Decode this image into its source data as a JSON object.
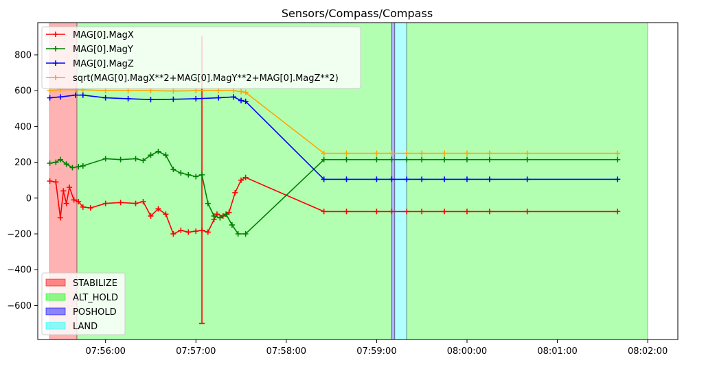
{
  "chart_data": {
    "type": "line",
    "title": "Sensors/Compass/Compass",
    "xlabel": "",
    "ylabel": "",
    "xlim": [
      "07:55:15",
      "08:02:20"
    ],
    "ylim": [
      -790,
      980
    ],
    "x_ticks": [
      "07:56:00",
      "07:57:00",
      "07:58:00",
      "07:59:00",
      "08:00:00",
      "08:01:00",
      "08:02:00"
    ],
    "y_ticks": [
      800,
      600,
      400,
      200,
      0,
      -200,
      -400,
      -600
    ],
    "y_tick_labels": [
      "800",
      "600",
      "400",
      "200",
      "0",
      "−200",
      "−400",
      "−600"
    ],
    "grid": false,
    "series_legend_position": "upper-left",
    "mode_legend_position": "lower-left",
    "series": [
      {
        "name": "MAG[0].MagX",
        "color": "#ff0000",
        "x": [
          "07:55:23",
          "07:55:27",
          "07:55:30",
          "07:55:32",
          "07:55:34",
          "07:55:36",
          "07:55:39",
          "07:55:42",
          "07:55:45",
          "07:55:50",
          "07:56:00",
          "07:56:10",
          "07:56:20",
          "07:56:25",
          "07:56:30",
          "07:56:35",
          "07:56:40",
          "07:56:45",
          "07:56:50",
          "07:56:55",
          "07:57:00",
          "07:57:04",
          "07:57:08",
          "07:57:12",
          "07:57:14",
          "07:57:18",
          "07:57:22",
          "07:57:26",
          "07:57:30",
          "07:57:33",
          "07:58:25",
          "07:58:40",
          "07:59:00",
          "07:59:10",
          "07:59:20",
          "07:59:30",
          "07:59:45",
          "08:00:00",
          "08:00:15",
          "08:00:40",
          "08:01:40"
        ],
        "y": [
          95,
          90,
          -110,
          40,
          -30,
          60,
          -10,
          -20,
          -50,
          -55,
          -30,
          -25,
          -30,
          -20,
          -100,
          -60,
          -90,
          -200,
          -180,
          -190,
          -185,
          -180,
          -190,
          -120,
          -90,
          -100,
          -80,
          30,
          100,
          115,
          -75,
          -75,
          -75,
          -75,
          -75,
          -75,
          -75,
          -75,
          -75,
          -75,
          -75
        ]
      },
      {
        "name": "MAG[0].MagY",
        "color": "#008000",
        "x": [
          "07:55:23",
          "07:55:27",
          "07:55:30",
          "07:55:34",
          "07:55:38",
          "07:55:42",
          "07:55:45",
          "07:56:00",
          "07:56:10",
          "07:56:20",
          "07:56:25",
          "07:56:30",
          "07:56:35",
          "07:56:40",
          "07:56:45",
          "07:56:50",
          "07:56:55",
          "07:57:00",
          "07:57:04",
          "07:57:08",
          "07:57:12",
          "07:57:16",
          "07:57:20",
          "07:57:24",
          "07:57:28",
          "07:57:33",
          "07:58:25",
          "07:58:40",
          "07:59:00",
          "07:59:10",
          "07:59:20",
          "07:59:30",
          "07:59:45",
          "08:00:00",
          "08:00:15",
          "08:00:40",
          "08:01:40"
        ],
        "y": [
          195,
          200,
          215,
          190,
          170,
          175,
          180,
          220,
          215,
          220,
          210,
          240,
          260,
          240,
          160,
          140,
          130,
          120,
          130,
          -30,
          -100,
          -110,
          -90,
          -150,
          -200,
          -200,
          215,
          215,
          215,
          215,
          215,
          215,
          215,
          215,
          215,
          215,
          215
        ]
      },
      {
        "name": "MAG[0].MagZ",
        "color": "#0000ff",
        "x": [
          "07:55:23",
          "07:55:30",
          "07:55:40",
          "07:55:45",
          "07:56:00",
          "07:56:15",
          "07:56:30",
          "07:56:45",
          "07:57:00",
          "07:57:15",
          "07:57:25",
          "07:57:30",
          "07:57:33",
          "07:58:25",
          "07:58:40",
          "07:59:00",
          "07:59:10",
          "07:59:20",
          "07:59:30",
          "07:59:45",
          "08:00:00",
          "08:00:15",
          "08:00:40",
          "08:01:40"
        ],
        "y": [
          560,
          565,
          575,
          575,
          560,
          555,
          550,
          552,
          555,
          560,
          565,
          545,
          540,
          105,
          105,
          105,
          105,
          105,
          105,
          105,
          105,
          105,
          105,
          105
        ]
      },
      {
        "name": "sqrt(MAG[0].MagX**2+MAG[0].MagY**2+MAG[0].MagZ**2)",
        "color": "#ffa500",
        "x": [
          "07:55:23",
          "07:55:30",
          "07:55:40",
          "07:55:45",
          "07:56:00",
          "07:56:15",
          "07:56:30",
          "07:56:45",
          "07:57:00",
          "07:57:15",
          "07:57:25",
          "07:57:30",
          "07:57:33",
          "07:58:25",
          "07:58:40",
          "07:59:00",
          "07:59:10",
          "07:59:20",
          "07:59:30",
          "07:59:45",
          "08:00:00",
          "08:00:15",
          "08:00:40",
          "08:01:40"
        ],
        "y": [
          600,
          605,
          605,
          605,
          600,
          600,
          600,
          598,
          600,
          600,
          600,
          595,
          590,
          250,
          250,
          250,
          250,
          250,
          250,
          250,
          250,
          250,
          250,
          250
        ]
      }
    ],
    "spike": {
      "series": "MAG[0].MagX",
      "x": "07:57:04",
      "y_low": -700,
      "y_high": 905
    },
    "mode_bands": [
      {
        "name": "STABILIZE",
        "x_start": "07:55:23",
        "x_end": "07:55:41",
        "color": "#ff0000"
      },
      {
        "name": "ALT_HOLD",
        "x_start": "07:55:41",
        "x_end": "07:59:10",
        "color": "#00ff00"
      },
      {
        "name": "POSHOLD",
        "x_start": "07:59:10",
        "x_end": "07:59:12",
        "color": "#0000ff"
      },
      {
        "name": "LAND",
        "x_start": "07:59:12",
        "x_end": "07:59:20",
        "color": "#00ffff"
      },
      {
        "name": "ALT_HOLD",
        "x_start": "07:59:20",
        "x_end": "08:02:00",
        "color": "#00ff00"
      }
    ],
    "mode_legend": [
      {
        "name": "STABILIZE",
        "color": "#ff0000"
      },
      {
        "name": "ALT_HOLD",
        "color": "#00ff00"
      },
      {
        "name": "POSHOLD",
        "color": "#0000ff"
      },
      {
        "name": "LAND",
        "color": "#00ffff"
      }
    ]
  }
}
